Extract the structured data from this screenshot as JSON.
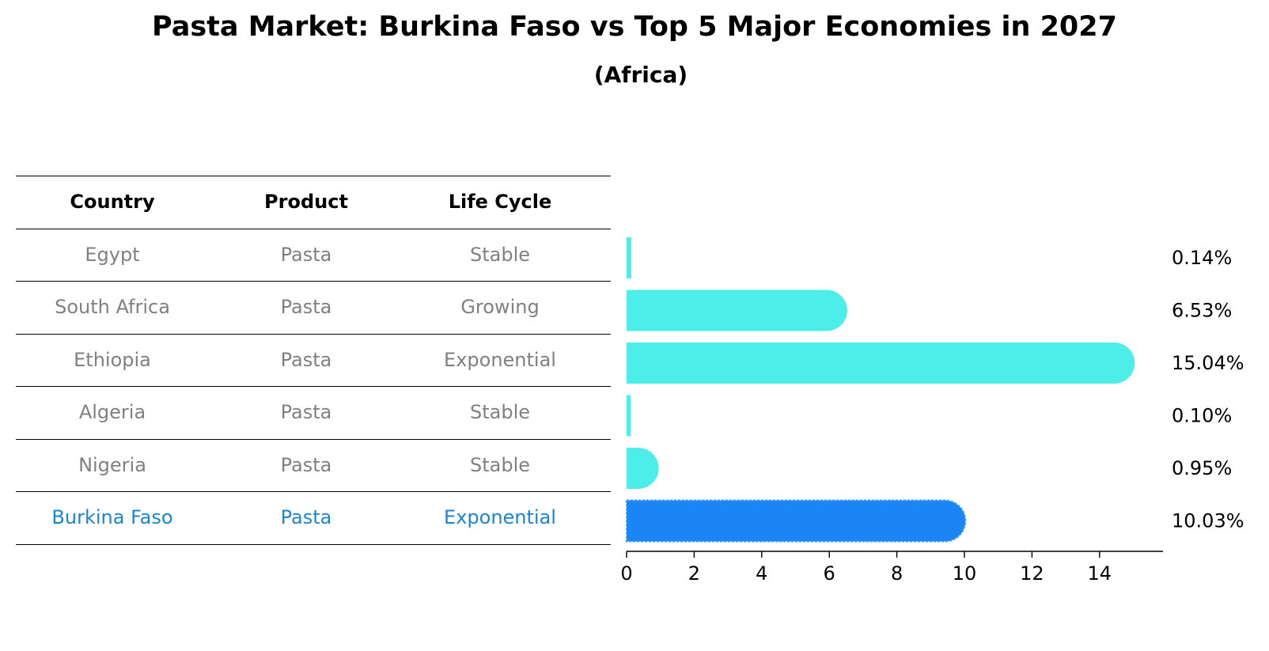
{
  "title": "Pasta Market: Burkina Faso vs Top 5 Major Economies in 2027",
  "subtitle": "(Africa)",
  "table": {
    "headers": [
      "Country",
      "Product",
      "Life Cycle"
    ],
    "rows": [
      [
        "Egypt",
        "Pasta",
        "Stable"
      ],
      [
        "South Africa",
        "Pasta",
        "Growing"
      ],
      [
        "Ethiopia",
        "Pasta",
        "Exponential"
      ],
      [
        "Algeria",
        "Pasta",
        "Stable"
      ],
      [
        "Nigeria",
        "Pasta",
        "Stable"
      ],
      [
        "Burkina Faso",
        "Pasta",
        "Exponential"
      ]
    ],
    "highlight_row": 5
  },
  "colors": {
    "bar": "#4deeea",
    "highlight_bar": "#1b85f5",
    "highlight_text": "#1a85d0",
    "muted_text": "#808080"
  },
  "chart_data": {
    "type": "bar",
    "orientation": "horizontal",
    "categories": [
      "Egypt",
      "South Africa",
      "Ethiopia",
      "Algeria",
      "Nigeria",
      "Burkina Faso"
    ],
    "values": [
      0.14,
      6.53,
      15.04,
      0.1,
      0.95,
      10.03
    ],
    "value_labels": [
      "0.14%",
      "6.53%",
      "15.04%",
      "0.10%",
      "0.95%",
      "10.03%"
    ],
    "xlim": [
      0,
      15.8
    ],
    "xticks": [
      0,
      2,
      4,
      6,
      8,
      10,
      12,
      14
    ],
    "highlight_index": 5,
    "grid": false
  }
}
